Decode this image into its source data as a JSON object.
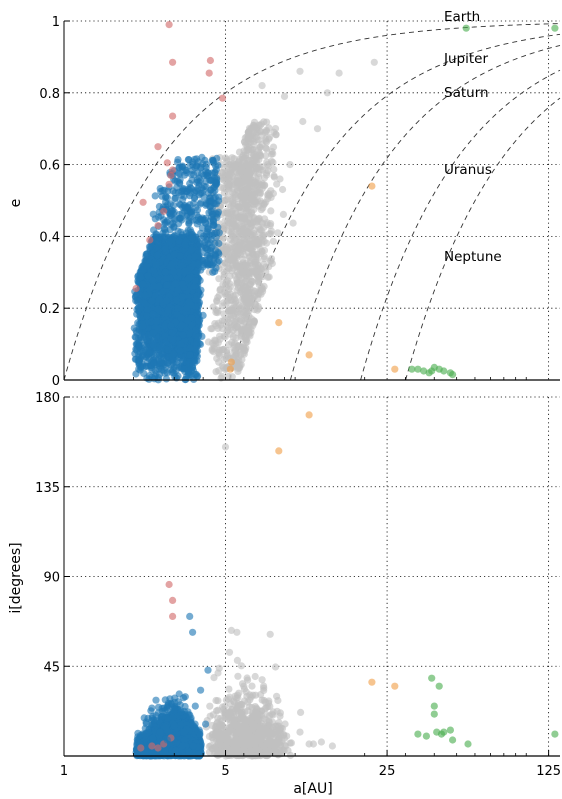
{
  "chart_data": [
    {
      "type": "scatter",
      "panel": "top",
      "xlabel": "",
      "ylabel": "e",
      "xscale": "log",
      "xlim": [
        1,
        140
      ],
      "ylim": [
        0,
        1
      ],
      "yticks": [
        {
          "value": 0,
          "label": "0"
        },
        {
          "value": 0.2,
          "label": "0.2"
        },
        {
          "value": 0.4,
          "label": "0.4"
        },
        {
          "value": 0.6,
          "label": "0.6"
        },
        {
          "value": 0.8,
          "label": "0.8"
        },
        {
          "value": 1,
          "label": "1"
        }
      ],
      "grid": true,
      "colors": {
        "main_belt": "#1f77b4",
        "jupiter_family": "#c0c0c0",
        "inner": "#d26a6a",
        "centaurs": "#f0a04b",
        "tno": "#4caf50"
      },
      "curves": [
        {
          "label": "Earth",
          "q": 1
        },
        {
          "label": "Jupiter",
          "q": 5.2
        },
        {
          "label": "Saturn",
          "q": 9.54
        },
        {
          "label": "Uranus",
          "q": 19.2
        },
        {
          "label": "Neptune",
          "q": 30.06
        }
      ],
      "series": [
        {
          "group": "inner",
          "points": [
            [
              2.85,
              0.99
            ],
            [
              2.95,
              0.885
            ],
            [
              4.3,
              0.89
            ],
            [
              4.25,
              0.855
            ],
            [
              4.85,
              0.785
            ],
            [
              2.95,
              0.735
            ],
            [
              2.55,
              0.65
            ],
            [
              2.8,
              0.605
            ],
            [
              2.95,
              0.585
            ],
            [
              2.9,
              0.57
            ],
            [
              2.85,
              0.545
            ],
            [
              2.2,
              0.495
            ],
            [
              2.7,
              0.47
            ],
            [
              2.55,
              0.43
            ],
            [
              2.35,
              0.39
            ],
            [
              2.05,
              0.255
            ]
          ]
        },
        {
          "group": "centaurs",
          "points": [
            [
              8.5,
              0.16
            ],
            [
              11.5,
              0.07
            ],
            [
              21.5,
              0.54
            ],
            [
              27,
              0.03
            ],
            [
              5.3,
              0.05
            ],
            [
              5.25,
              0.03
            ]
          ]
        },
        {
          "group": "tno",
          "points": [
            [
              55,
              0.98
            ],
            [
              133,
              0.98
            ],
            [
              32,
              0.03
            ],
            [
              34,
              0.03
            ],
            [
              36,
              0.025
            ],
            [
              38,
              0.02
            ],
            [
              39,
              0.025
            ],
            [
              40,
              0.035
            ],
            [
              42,
              0.03
            ],
            [
              44,
              0.025
            ],
            [
              47,
              0.02
            ],
            [
              48,
              0.015
            ]
          ]
        },
        {
          "group": "jupiter_family",
          "points": [
            [
              10.5,
              0.86
            ],
            [
              13.8,
              0.8
            ],
            [
              15.5,
              0.855
            ],
            [
              22,
              0.885
            ],
            [
              7.2,
              0.82
            ],
            [
              9.0,
              0.79
            ],
            [
              10.8,
              0.72
            ],
            [
              12.5,
              0.7
            ],
            [
              8.0,
              0.63
            ],
            [
              9.5,
              0.6
            ],
            [
              7.6,
              0.6
            ],
            [
              8.6,
              0.56
            ],
            [
              7.0,
              0.53
            ],
            [
              6.2,
              0.5
            ],
            [
              7.8,
              0.43
            ],
            [
              5.9,
              0.46
            ],
            [
              6.4,
              0.38
            ],
            [
              6.9,
              0.35
            ],
            [
              6.0,
              0.3
            ],
            [
              5.6,
              0.25
            ],
            [
              5.8,
              0.2
            ],
            [
              5.4,
              0.12
            ]
          ]
        },
        {
          "group": "main_belt",
          "points": [
            [
              2.75,
              0.3
            ],
            [
              3.1,
              0.25
            ],
            [
              3.4,
              0.2
            ],
            [
              2.9,
              0.15
            ],
            [
              3.2,
              0.1
            ],
            [
              2.6,
              0.05
            ],
            [
              3.5,
              0.07
            ],
            [
              3.8,
              0.12
            ],
            [
              3.0,
              0.35
            ],
            [
              2.3,
              0.08
            ],
            [
              2.2,
              0.15
            ],
            [
              3.9,
              0.52
            ],
            [
              4.1,
              0.45
            ],
            [
              4.2,
              0.38
            ],
            [
              4.5,
              0.55
            ],
            [
              3.95,
              0.62
            ],
            [
              3.6,
              0.6
            ],
            [
              4.7,
              0.41
            ],
            [
              4.4,
              0.3
            ],
            [
              2.4,
              0.22
            ],
            [
              2.5,
              0.32
            ],
            [
              4.0,
              0.18
            ],
            [
              3.3,
              0.03
            ],
            [
              2.8,
              0.02
            ]
          ]
        }
      ]
    },
    {
      "type": "scatter",
      "panel": "bottom",
      "xlabel": "a[AU]",
      "ylabel": "i[degrees]",
      "xscale": "log",
      "xlim": [
        1,
        140
      ],
      "ylim": [
        0,
        180
      ],
      "xticks": [
        {
          "value": 1,
          "label": "1"
        },
        {
          "value": 5,
          "label": "5"
        },
        {
          "value": 25,
          "label": "25"
        },
        {
          "value": 125,
          "label": "125"
        }
      ],
      "yticks": [
        {
          "value": 45,
          "label": "45"
        },
        {
          "value": 90,
          "label": "90"
        },
        {
          "value": 135,
          "label": "135"
        },
        {
          "value": 180,
          "label": "180"
        }
      ],
      "grid": true,
      "series": [
        {
          "group": "inner",
          "points": [
            [
              2.85,
              86
            ],
            [
              2.95,
              78
            ],
            [
              2.95,
              70
            ],
            [
              2.15,
              4
            ],
            [
              2.55,
              4
            ],
            [
              2.7,
              6
            ],
            [
              2.4,
              5
            ],
            [
              2.9,
              9
            ]
          ]
        },
        {
          "group": "centaurs",
          "points": [
            [
              11.5,
              171
            ],
            [
              8.5,
              153
            ],
            [
              21.5,
              37
            ],
            [
              27,
              35
            ]
          ]
        },
        {
          "group": "tno",
          "points": [
            [
              39,
              39
            ],
            [
              42,
              35
            ],
            [
              133,
              11
            ],
            [
              40,
              25
            ],
            [
              40,
              21
            ],
            [
              34,
              11
            ],
            [
              37,
              10
            ],
            [
              43,
              11
            ],
            [
              41,
              12
            ],
            [
              44,
              12
            ],
            [
              48,
              8
            ],
            [
              56,
              6
            ],
            [
              47,
              13
            ]
          ]
        },
        {
          "group": "jupiter_family",
          "points": [
            [
              5.0,
              155
            ],
            [
              5.3,
              63
            ],
            [
              7.8,
              61
            ],
            [
              5.6,
              62
            ],
            [
              5.2,
              52
            ],
            [
              4.7,
              44
            ],
            [
              6.0,
              35
            ],
            [
              5.5,
              30
            ],
            [
              6.8,
              24
            ],
            [
              7.5,
              18
            ],
            [
              8.5,
              15
            ],
            [
              9.2,
              10
            ],
            [
              10.5,
              12
            ],
            [
              12.0,
              6
            ],
            [
              13.0,
              7
            ],
            [
              14.5,
              5
            ],
            [
              11.5,
              6
            ],
            [
              7.0,
              8
            ],
            [
              6.0,
              12
            ],
            [
              5.3,
              20
            ]
          ]
        },
        {
          "group": "main_belt",
          "points": [
            [
              3.5,
              70
            ],
            [
              3.6,
              62
            ],
            [
              4.2,
              43
            ],
            [
              3.9,
              33
            ],
            [
              2.5,
              28
            ],
            [
              2.4,
              24
            ],
            [
              2.45,
              18
            ],
            [
              3.0,
              15
            ],
            [
              3.3,
              12
            ],
            [
              2.8,
              8
            ],
            [
              3.7,
              25
            ],
            [
              4.1,
              16
            ],
            [
              2.6,
              12
            ]
          ]
        }
      ]
    }
  ],
  "labels": {
    "top_ylabel": "e",
    "bottom_ylabel": "i[degrees]",
    "bottom_xlabel": "a[AU]"
  }
}
